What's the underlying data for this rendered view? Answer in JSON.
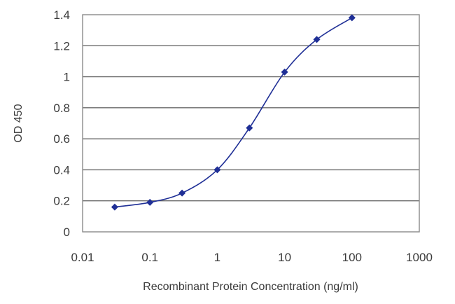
{
  "chart_data": {
    "type": "scatter",
    "xlabel": "Recombinant Protein Concentration (ng/ml)",
    "ylabel": "OD 450",
    "x_scale": "log",
    "xlim": [
      0.01,
      1000
    ],
    "ylim": [
      0,
      1.4
    ],
    "x_ticks": [
      "0.01",
      "0.1",
      "1",
      "10",
      "100",
      "1000"
    ],
    "y_ticks": [
      "0",
      "0.2",
      "0.4",
      "0.6",
      "0.8",
      "1",
      "1.2",
      "1.4"
    ],
    "grid": "horizontal",
    "series": [
      {
        "x": [
          0.03,
          0.1,
          0.3,
          1,
          3,
          10,
          30,
          100
        ],
        "y": [
          0.16,
          0.19,
          0.25,
          0.4,
          0.67,
          1.03,
          1.24,
          1.38
        ],
        "fitted_curve": true
      }
    ],
    "colors": {
      "series": "#1f2f96",
      "grid": "#6a6a6a"
    }
  }
}
